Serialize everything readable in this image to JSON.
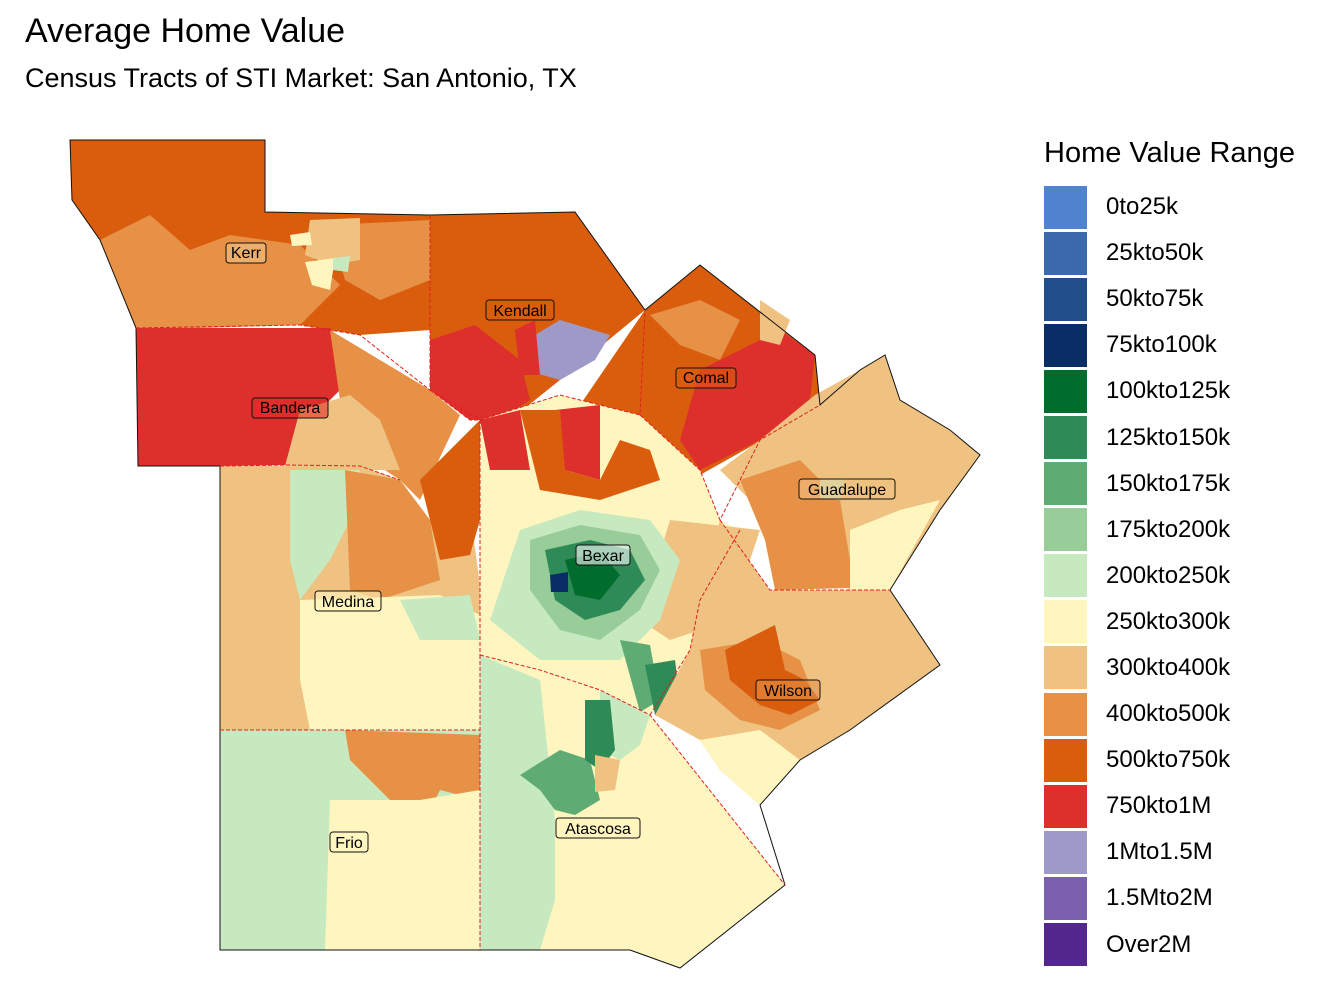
{
  "title": "Average Home Value",
  "subtitle": "Census Tracts of STI Market: San Antonio, TX",
  "legend": {
    "title": "Home Value Range",
    "items": [
      {
        "label": "0to25k",
        "color": "#5083cf"
      },
      {
        "label": "25kto50k",
        "color": "#3a6aad"
      },
      {
        "label": "50kto75k",
        "color": "#214d8a"
      },
      {
        "label": "75kto100k",
        "color": "#0a2d65"
      },
      {
        "label": "100kto125k",
        "color": "#006d2c"
      },
      {
        "label": "125kto150k",
        "color": "#2e8b57"
      },
      {
        "label": "150kto175k",
        "color": "#5eab74"
      },
      {
        "label": "175kto200k",
        "color": "#98cd9a"
      },
      {
        "label": "200kto250k",
        "color": "#c7e9c0"
      },
      {
        "label": "250kto300k",
        "color": "#fff5bf"
      },
      {
        "label": "300kto400k",
        "color": "#f0c282"
      },
      {
        "label": "400kto500k",
        "color": "#e69146"
      },
      {
        "label": "500kto750k",
        "color": "#da5d0e"
      },
      {
        "label": "750kto1M",
        "color": "#dd2f2c"
      },
      {
        "label": "1Mto1.5M",
        "color": "#9e9ac8"
      },
      {
        "label": "1.5Mto2M",
        "color": "#7b60ae"
      },
      {
        "label": "Over2M",
        "color": "#54278f"
      }
    ]
  },
  "counties": [
    {
      "name": "Kerr"
    },
    {
      "name": "Kendall"
    },
    {
      "name": "Comal"
    },
    {
      "name": "Bandera"
    },
    {
      "name": "Guadalupe"
    },
    {
      "name": "Bexar"
    },
    {
      "name": "Medina"
    },
    {
      "name": "Wilson"
    },
    {
      "name": "Frio"
    },
    {
      "name": "Atascosa"
    }
  ]
}
